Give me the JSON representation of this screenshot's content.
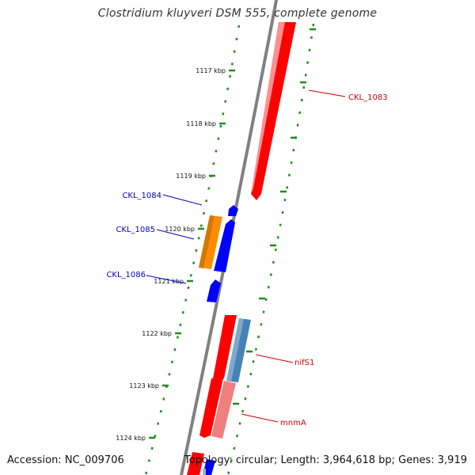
{
  "title": "Clostridium kluyveri DSM 555, complete genome",
  "footer": {
    "accession": "Accession: NC_009706",
    "summary": "Topology: circular; Length: 3,964,618 bp; Genes: 3,919"
  },
  "colors": {
    "forward_gene": "#ff0000",
    "reverse_gene": "#0000ff",
    "orange_gene": "#ff8c00",
    "steelblue_gene": "#4682b4",
    "pink_gene": "#f08080",
    "backbone": "#808080",
    "tick_mark": "#228b22",
    "forward_label": "#d00000",
    "reverse_label": "#0000c8"
  },
  "ticks": [
    "1117 kbp",
    "1118 kbp",
    "1119 kbp",
    "1120 kbp",
    "1121 kbp",
    "1122 kbp",
    "1123 kbp",
    "1124 kbp"
  ],
  "gene_labels": [
    {
      "text": "CKL_1083",
      "strand": "forward"
    },
    {
      "text": "CKL_1084",
      "strand": "reverse"
    },
    {
      "text": "CKL_1085",
      "strand": "reverse"
    },
    {
      "text": "CKL_1086",
      "strand": "reverse"
    },
    {
      "text": "nifS1",
      "strand": "forward"
    },
    {
      "text": "mnmA",
      "strand": "forward"
    }
  ]
}
